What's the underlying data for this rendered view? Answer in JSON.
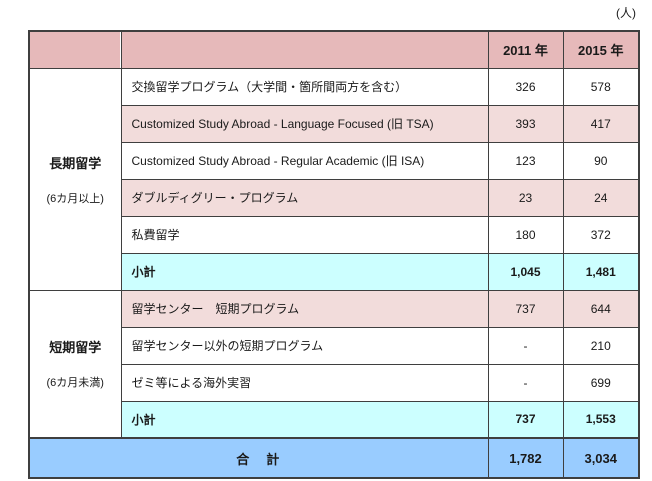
{
  "unit_label": "(人)",
  "colors": {
    "header_pink": "#e6b9ba",
    "row_pink": "#f2dcdb",
    "subtotal_cyan": "#ccffff",
    "total_blue": "#99ccff",
    "border": "#3f3f3f",
    "text": "#1a1a1a"
  },
  "table": {
    "header": {
      "col_2011": "2011 年",
      "col_2015": "2015 年"
    },
    "categories": {
      "long_term": {
        "name": "長期留学",
        "duration": "(6カ月以上)"
      },
      "short_term": {
        "name": "短期留学",
        "duration": "(6カ月未満)"
      }
    },
    "rows": [
      {
        "label": "交換留学プログラム（大学間・箇所間両方を含む）",
        "v2011": "326",
        "v2015": "578"
      },
      {
        "label": "Customized Study Abroad - Language Focused (旧 TSA)",
        "v2011": "393",
        "v2015": "417"
      },
      {
        "label": "Customized Study Abroad - Regular Academic (旧 ISA)",
        "v2011": "123",
        "v2015": "90"
      },
      {
        "label": "ダブルディグリー・プログラム",
        "v2011": "23",
        "v2015": "24"
      },
      {
        "label": "私費留学",
        "v2011": "180",
        "v2015": "372"
      },
      {
        "label": "小計",
        "v2011": "1,045",
        "v2015": "1,481"
      },
      {
        "label": "留学センター　短期プログラム",
        "v2011": "737",
        "v2015": "644"
      },
      {
        "label": "留学センター以外の短期プログラム",
        "v2011": "-",
        "v2015": "210"
      },
      {
        "label": "ゼミ等による海外実習",
        "v2011": "-",
        "v2015": "699"
      },
      {
        "label": "小計",
        "v2011": "737",
        "v2015": "1,553"
      }
    ],
    "total": {
      "label": "合　計",
      "v2011": "1,782",
      "v2015": "3,034"
    }
  }
}
